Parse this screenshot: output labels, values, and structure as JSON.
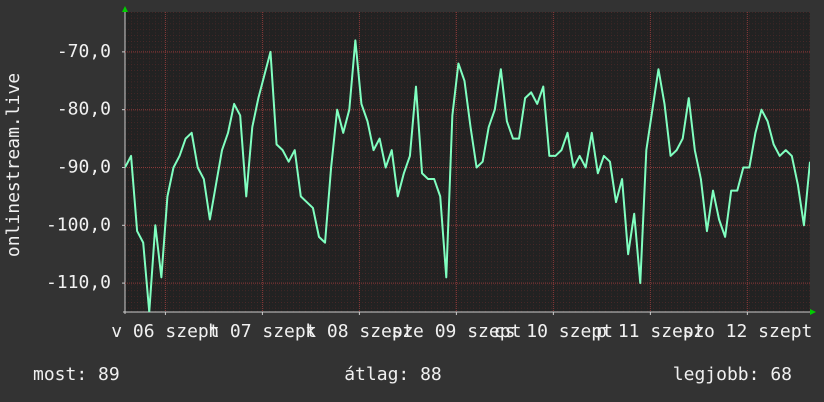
{
  "chart_data": {
    "type": "line",
    "ylabel": "onlinestream.live",
    "x": [
      -10,
      -8.5,
      -7,
      -5.5,
      -4,
      -2.5,
      -1,
      0.5,
      2,
      3.5,
      5,
      6.5,
      8,
      9.5,
      11,
      12.5,
      14,
      15.5,
      17,
      18.5,
      20,
      21.5,
      23,
      24.5,
      26,
      27.5,
      29,
      30.5,
      32,
      33.5,
      35,
      36.5,
      38,
      39.5,
      41,
      42.5,
      44,
      45.5,
      47,
      48.5,
      50,
      51.5,
      53,
      54.5,
      56,
      57.5,
      59,
      60.5,
      62,
      63.5,
      65,
      66.5,
      68,
      69.5,
      71,
      72.5,
      74,
      75.5,
      77,
      78.5,
      80,
      81.5,
      83,
      84.5,
      86,
      87.5,
      89,
      90.5,
      92,
      93.5,
      95,
      96.5,
      98,
      99.5,
      101,
      102.5,
      104,
      105.5,
      107,
      108.5,
      110,
      111.5,
      113,
      114.5,
      116,
      117.5,
      119,
      120.5,
      122,
      123.5,
      125,
      126.5,
      128,
      129.5,
      131,
      132.5,
      134,
      135.5,
      137,
      138.5,
      140,
      141.5,
      143,
      144.5,
      146,
      147.5,
      149,
      150.5,
      152,
      153.5,
      155,
      156.5,
      158,
      159.5
    ],
    "series": [
      {
        "color": "#80ffc0",
        "values": [
          -90,
          -88,
          -101,
          -103,
          -115,
          -100,
          -109,
          -95,
          -90,
          -88,
          -85,
          -84,
          -90,
          -92,
          -99,
          -93,
          -87,
          -84,
          -79,
          -81,
          -95,
          -83,
          -78,
          -74,
          -70,
          -86,
          -87,
          -89,
          -87,
          -95,
          -96,
          -97,
          -102,
          -103,
          -90,
          -80,
          -84,
          -80,
          -68,
          -79,
          -82,
          -87,
          -85,
          -90,
          -87,
          -95,
          -91,
          -88,
          -76,
          -91,
          -92,
          -92,
          -95,
          -109,
          -81,
          -72,
          -75,
          -83,
          -90,
          -89,
          -83,
          -80,
          -73,
          -82,
          -85,
          -85,
          -78,
          -77,
          -79,
          -76,
          -88,
          -88,
          -87,
          -84,
          -90,
          -88,
          -90,
          -84,
          -91,
          -88,
          -89,
          -96,
          -92,
          -105,
          -98,
          -110,
          -87,
          -80,
          -73,
          -79,
          -88,
          -87,
          -85,
          -78,
          -87,
          -92,
          -101,
          -94,
          -99,
          -102,
          -94,
          -94,
          -90,
          -90,
          -84,
          -80,
          -82,
          -86,
          -88,
          -87,
          -88,
          -93,
          -100,
          -89
        ]
      }
    ],
    "xlim": [
      -10,
      159.5
    ],
    "xticks": [
      {
        "value": 0,
        "label": "v 06 szept"
      },
      {
        "value": 24,
        "label": "h 07 szept"
      },
      {
        "value": 48,
        "label": "k 08 szept"
      },
      {
        "value": 72,
        "label": "sze 09 szept"
      },
      {
        "value": 96,
        "label": "cs 10 szept"
      },
      {
        "value": 120,
        "label": "p 11 szept"
      },
      {
        "value": 144,
        "label": "szo 12 szept"
      }
    ],
    "ylim": [
      -115,
      -63.1
    ],
    "yticks": [
      {
        "value": -70,
        "label": "-70,0"
      },
      {
        "value": -80,
        "label": "-80,0"
      },
      {
        "value": -90,
        "label": "-90,0"
      },
      {
        "value": -100,
        "label": "-100,0"
      },
      {
        "value": -110,
        "label": "-110,0"
      }
    ],
    "grid": true,
    "stats": [
      "most: 89",
      "átlag: 88",
      "legjobb: 68"
    ]
  }
}
